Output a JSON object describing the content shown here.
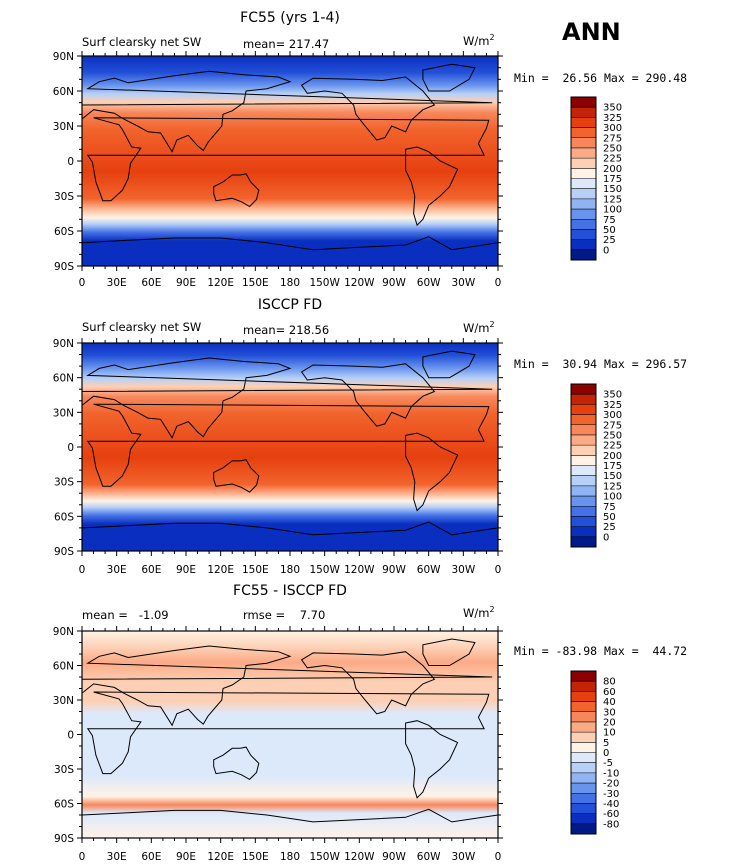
{
  "season": "ANN",
  "panels": [
    {
      "title": "FC55 (yrs 1-4)",
      "left_label": "Surf clearsky net SW",
      "center_label": "mean= 217.47",
      "units": "W/m",
      "units_sup": "2",
      "minmax": "Min =  26.56 Max = 290.48",
      "colorbar": {
        "labels": [
          "350",
          "325",
          "300",
          "275",
          "250",
          "225",
          "200",
          "175",
          "150",
          "125",
          "100",
          "75",
          "50",
          "25",
          "0"
        ],
        "colors": [
          "#8b0000",
          "#c42406",
          "#e6400f",
          "#f2642d",
          "#f7875b",
          "#fbaa86",
          "#fdd0b5",
          "#fff3e6",
          "#dce9fb",
          "#b6d0f8",
          "#8fb3f3",
          "#6994ee",
          "#4472e6",
          "#2350d8",
          "#0a2fc0",
          "#001a8a"
        ]
      }
    },
    {
      "title": "ISCCP FD",
      "left_label": "Surf clearsky net SW",
      "center_label": "mean= 218.56",
      "units": "W/m",
      "units_sup": "2",
      "minmax": "Min =  30.94 Max = 296.57",
      "colorbar": {
        "labels": [
          "350",
          "325",
          "300",
          "275",
          "250",
          "225",
          "200",
          "175",
          "150",
          "125",
          "100",
          "75",
          "50",
          "25",
          "0"
        ],
        "colors": [
          "#8b0000",
          "#c42406",
          "#e6400f",
          "#f2642d",
          "#f7875b",
          "#fbaa86",
          "#fdd0b5",
          "#fff3e6",
          "#dce9fb",
          "#b6d0f8",
          "#8fb3f3",
          "#6994ee",
          "#4472e6",
          "#2350d8",
          "#0a2fc0",
          "#001a8a"
        ]
      }
    },
    {
      "title": "FC55 - ISCCP FD",
      "left_label": "mean =   -1.09",
      "center_label": "rmse =    7.70",
      "units": "W/m",
      "units_sup": "2",
      "minmax": "Min = -83.98 Max =  44.72",
      "colorbar": {
        "labels": [
          "80",
          "60",
          "40",
          "30",
          "20",
          "10",
          "5",
          "0",
          "-5",
          "-10",
          "-20",
          "-30",
          "-40",
          "-60",
          "-80"
        ],
        "colors": [
          "#8b0000",
          "#c42406",
          "#e6400f",
          "#f2642d",
          "#f7875b",
          "#fbaa86",
          "#fdd0b5",
          "#fff3e6",
          "#dce9fb",
          "#b6d0f8",
          "#8fb3f3",
          "#6994ee",
          "#4472e6",
          "#2350d8",
          "#0a2fc0",
          "#001a8a"
        ]
      }
    }
  ],
  "lat_labels": [
    "90N",
    "60N",
    "30N",
    "0",
    "30S",
    "60S",
    "90S"
  ],
  "lon_labels": [
    "0",
    "30E",
    "60E",
    "90E",
    "120E",
    "150E",
    "180",
    "150W",
    "120W",
    "90W",
    "60W",
    "30W",
    "0"
  ]
}
